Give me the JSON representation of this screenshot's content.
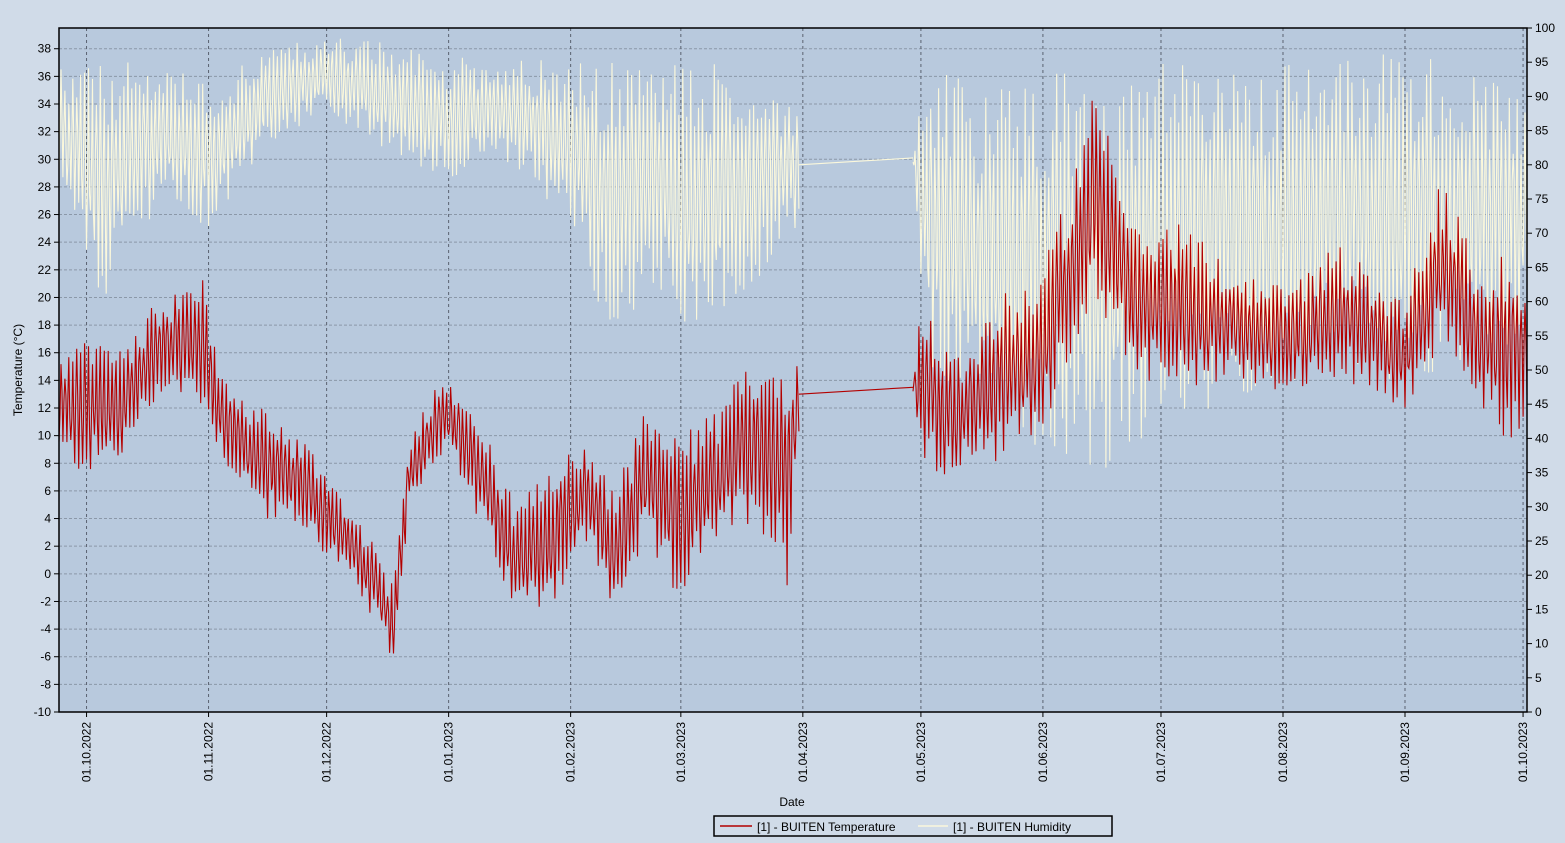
{
  "colors": {
    "background": "#d0dbe8",
    "plot_background": "#b8c9dd",
    "grid": "#8b98a8",
    "temperature": "#b30000",
    "humidity": "#fbf8dc",
    "axis": "#000000"
  },
  "legend": {
    "placement": "bottom-center",
    "items": [
      {
        "label": "[1] - BUITEN Temperature",
        "color": "#b30000"
      },
      {
        "label": "[1] - BUITEN Humidity",
        "color": "#fbf8dc"
      }
    ]
  },
  "chart_data": {
    "type": "line",
    "title": "",
    "xlabel": "Date",
    "ylabel": "Temperature (°C)",
    "y2label": "",
    "grid": true,
    "x_range": [
      "2022-09-24",
      "2023-10-02"
    ],
    "x_ticks": [
      "01.10.2022",
      "01.11.2022",
      "01.12.2022",
      "01.01.2023",
      "01.02.2023",
      "01.03.2023",
      "01.04.2023",
      "01.05.2023",
      "01.06.2023",
      "01.07.2023",
      "01.08.2023",
      "01.09.2023",
      "01.10.2023"
    ],
    "ylim": [
      -10,
      39.5
    ],
    "y_ticks": [
      38,
      36,
      34,
      32,
      30,
      28,
      26,
      24,
      22,
      20,
      18,
      16,
      14,
      12,
      10,
      8,
      6,
      4,
      2,
      0,
      -2,
      -4,
      -6,
      -8,
      -10
    ],
    "y2lim": [
      0,
      100
    ],
    "y2_ticks": [
      100,
      95,
      90,
      85,
      80,
      75,
      70,
      65,
      60,
      55,
      50,
      45,
      40,
      35,
      30,
      25,
      20,
      15,
      10,
      5,
      0
    ],
    "gap": {
      "from": "2023-03-31",
      "to": "2023-04-29"
    },
    "series": [
      {
        "name": "[1] - BUITEN Temperature",
        "axis": "left",
        "color": "#b30000",
        "style": "daily high/low oscillation",
        "envelope": [
          {
            "date": "2022-09-24",
            "min": 8,
            "max": 16
          },
          {
            "date": "2022-10-01",
            "min": 7,
            "max": 17
          },
          {
            "date": "2022-10-10",
            "min": 8,
            "max": 17
          },
          {
            "date": "2022-10-20",
            "min": 13,
            "max": 20
          },
          {
            "date": "2022-10-30",
            "min": 12,
            "max": 22
          },
          {
            "date": "2022-11-05",
            "min": 8,
            "max": 14
          },
          {
            "date": "2022-11-15",
            "min": 4,
            "max": 12
          },
          {
            "date": "2022-11-25",
            "min": 3,
            "max": 10
          },
          {
            "date": "2022-12-05",
            "min": 0,
            "max": 6
          },
          {
            "date": "2022-12-12",
            "min": -3,
            "max": 3
          },
          {
            "date": "2022-12-18",
            "min": -6.5,
            "max": -1
          },
          {
            "date": "2022-12-22",
            "min": 5,
            "max": 10
          },
          {
            "date": "2022-12-31",
            "min": 9,
            "max": 15
          },
          {
            "date": "2023-01-08",
            "min": 4,
            "max": 12
          },
          {
            "date": "2023-01-18",
            "min": -3,
            "max": 5
          },
          {
            "date": "2023-01-28",
            "min": -2,
            "max": 8
          },
          {
            "date": "2023-02-05",
            "min": 2,
            "max": 10
          },
          {
            "date": "2023-02-12",
            "min": -3,
            "max": 6
          },
          {
            "date": "2023-02-20",
            "min": 2,
            "max": 12
          },
          {
            "date": "2023-02-28",
            "min": -2,
            "max": 10
          },
          {
            "date": "2023-03-10",
            "min": 2,
            "max": 12
          },
          {
            "date": "2023-03-20",
            "min": 4,
            "max": 16
          },
          {
            "date": "2023-03-28",
            "min": -1,
            "max": 16
          },
          {
            "date": "2023-03-31",
            "min": 10,
            "max": 16
          },
          {
            "date": "2023-04-29",
            "min": 13,
            "max": 14
          },
          {
            "date": "2023-05-01",
            "min": 7,
            "max": 21
          },
          {
            "date": "2023-05-10",
            "min": 7,
            "max": 16
          },
          {
            "date": "2023-05-20",
            "min": 8,
            "max": 20
          },
          {
            "date": "2023-05-31",
            "min": 10,
            "max": 22
          },
          {
            "date": "2023-06-10",
            "min": 16,
            "max": 30
          },
          {
            "date": "2023-06-14",
            "min": 20,
            "max": 35
          },
          {
            "date": "2023-06-25",
            "min": 14,
            "max": 25
          },
          {
            "date": "2023-07-05",
            "min": 13,
            "max": 26
          },
          {
            "date": "2023-07-20",
            "min": 14,
            "max": 22
          },
          {
            "date": "2023-08-01",
            "min": 13,
            "max": 21
          },
          {
            "date": "2023-08-15",
            "min": 14,
            "max": 24
          },
          {
            "date": "2023-09-01",
            "min": 12,
            "max": 20
          },
          {
            "date": "2023-09-10",
            "min": 16,
            "max": 29
          },
          {
            "date": "2023-09-20",
            "min": 12,
            "max": 22
          },
          {
            "date": "2023-09-28",
            "min": 9,
            "max": 24
          },
          {
            "date": "2023-10-02",
            "min": 12,
            "max": 20
          }
        ]
      },
      {
        "name": "[1] - BUITEN Humidity",
        "axis": "right",
        "color": "#fbf8dc",
        "style": "daily high/low oscillation",
        "envelope": [
          {
            "date": "2022-09-24",
            "min": 75,
            "max": 95
          },
          {
            "date": "2022-10-05",
            "min": 60,
            "max": 95
          },
          {
            "date": "2022-10-20",
            "min": 75,
            "max": 95
          },
          {
            "date": "2022-11-01",
            "min": 70,
            "max": 92
          },
          {
            "date": "2022-11-15",
            "min": 82,
            "max": 97
          },
          {
            "date": "2022-12-01",
            "min": 88,
            "max": 99
          },
          {
            "date": "2022-12-15",
            "min": 82,
            "max": 98
          },
          {
            "date": "2022-12-31",
            "min": 78,
            "max": 96
          },
          {
            "date": "2023-01-15",
            "min": 80,
            "max": 96
          },
          {
            "date": "2023-02-01",
            "min": 72,
            "max": 95
          },
          {
            "date": "2023-02-10",
            "min": 56,
            "max": 95
          },
          {
            "date": "2023-02-25",
            "min": 62,
            "max": 95
          },
          {
            "date": "2023-03-05",
            "min": 52,
            "max": 97
          },
          {
            "date": "2023-03-15",
            "min": 60,
            "max": 93
          },
          {
            "date": "2023-03-31",
            "min": 70,
            "max": 90
          },
          {
            "date": "2023-04-29",
            "min": 80,
            "max": 82
          },
          {
            "date": "2023-05-03",
            "min": 48,
            "max": 97
          },
          {
            "date": "2023-05-15",
            "min": 45,
            "max": 90
          },
          {
            "date": "2023-05-31",
            "min": 38,
            "max": 95
          },
          {
            "date": "2023-06-15",
            "min": 35,
            "max": 92
          },
          {
            "date": "2023-06-30",
            "min": 40,
            "max": 95
          },
          {
            "date": "2023-07-15",
            "min": 45,
            "max": 95
          },
          {
            "date": "2023-08-01",
            "min": 45,
            "max": 96
          },
          {
            "date": "2023-08-15",
            "min": 50,
            "max": 96
          },
          {
            "date": "2023-09-01",
            "min": 48,
            "max": 97
          },
          {
            "date": "2023-09-15",
            "min": 50,
            "max": 95
          },
          {
            "date": "2023-10-02",
            "min": 55,
            "max": 90
          }
        ]
      }
    ]
  }
}
